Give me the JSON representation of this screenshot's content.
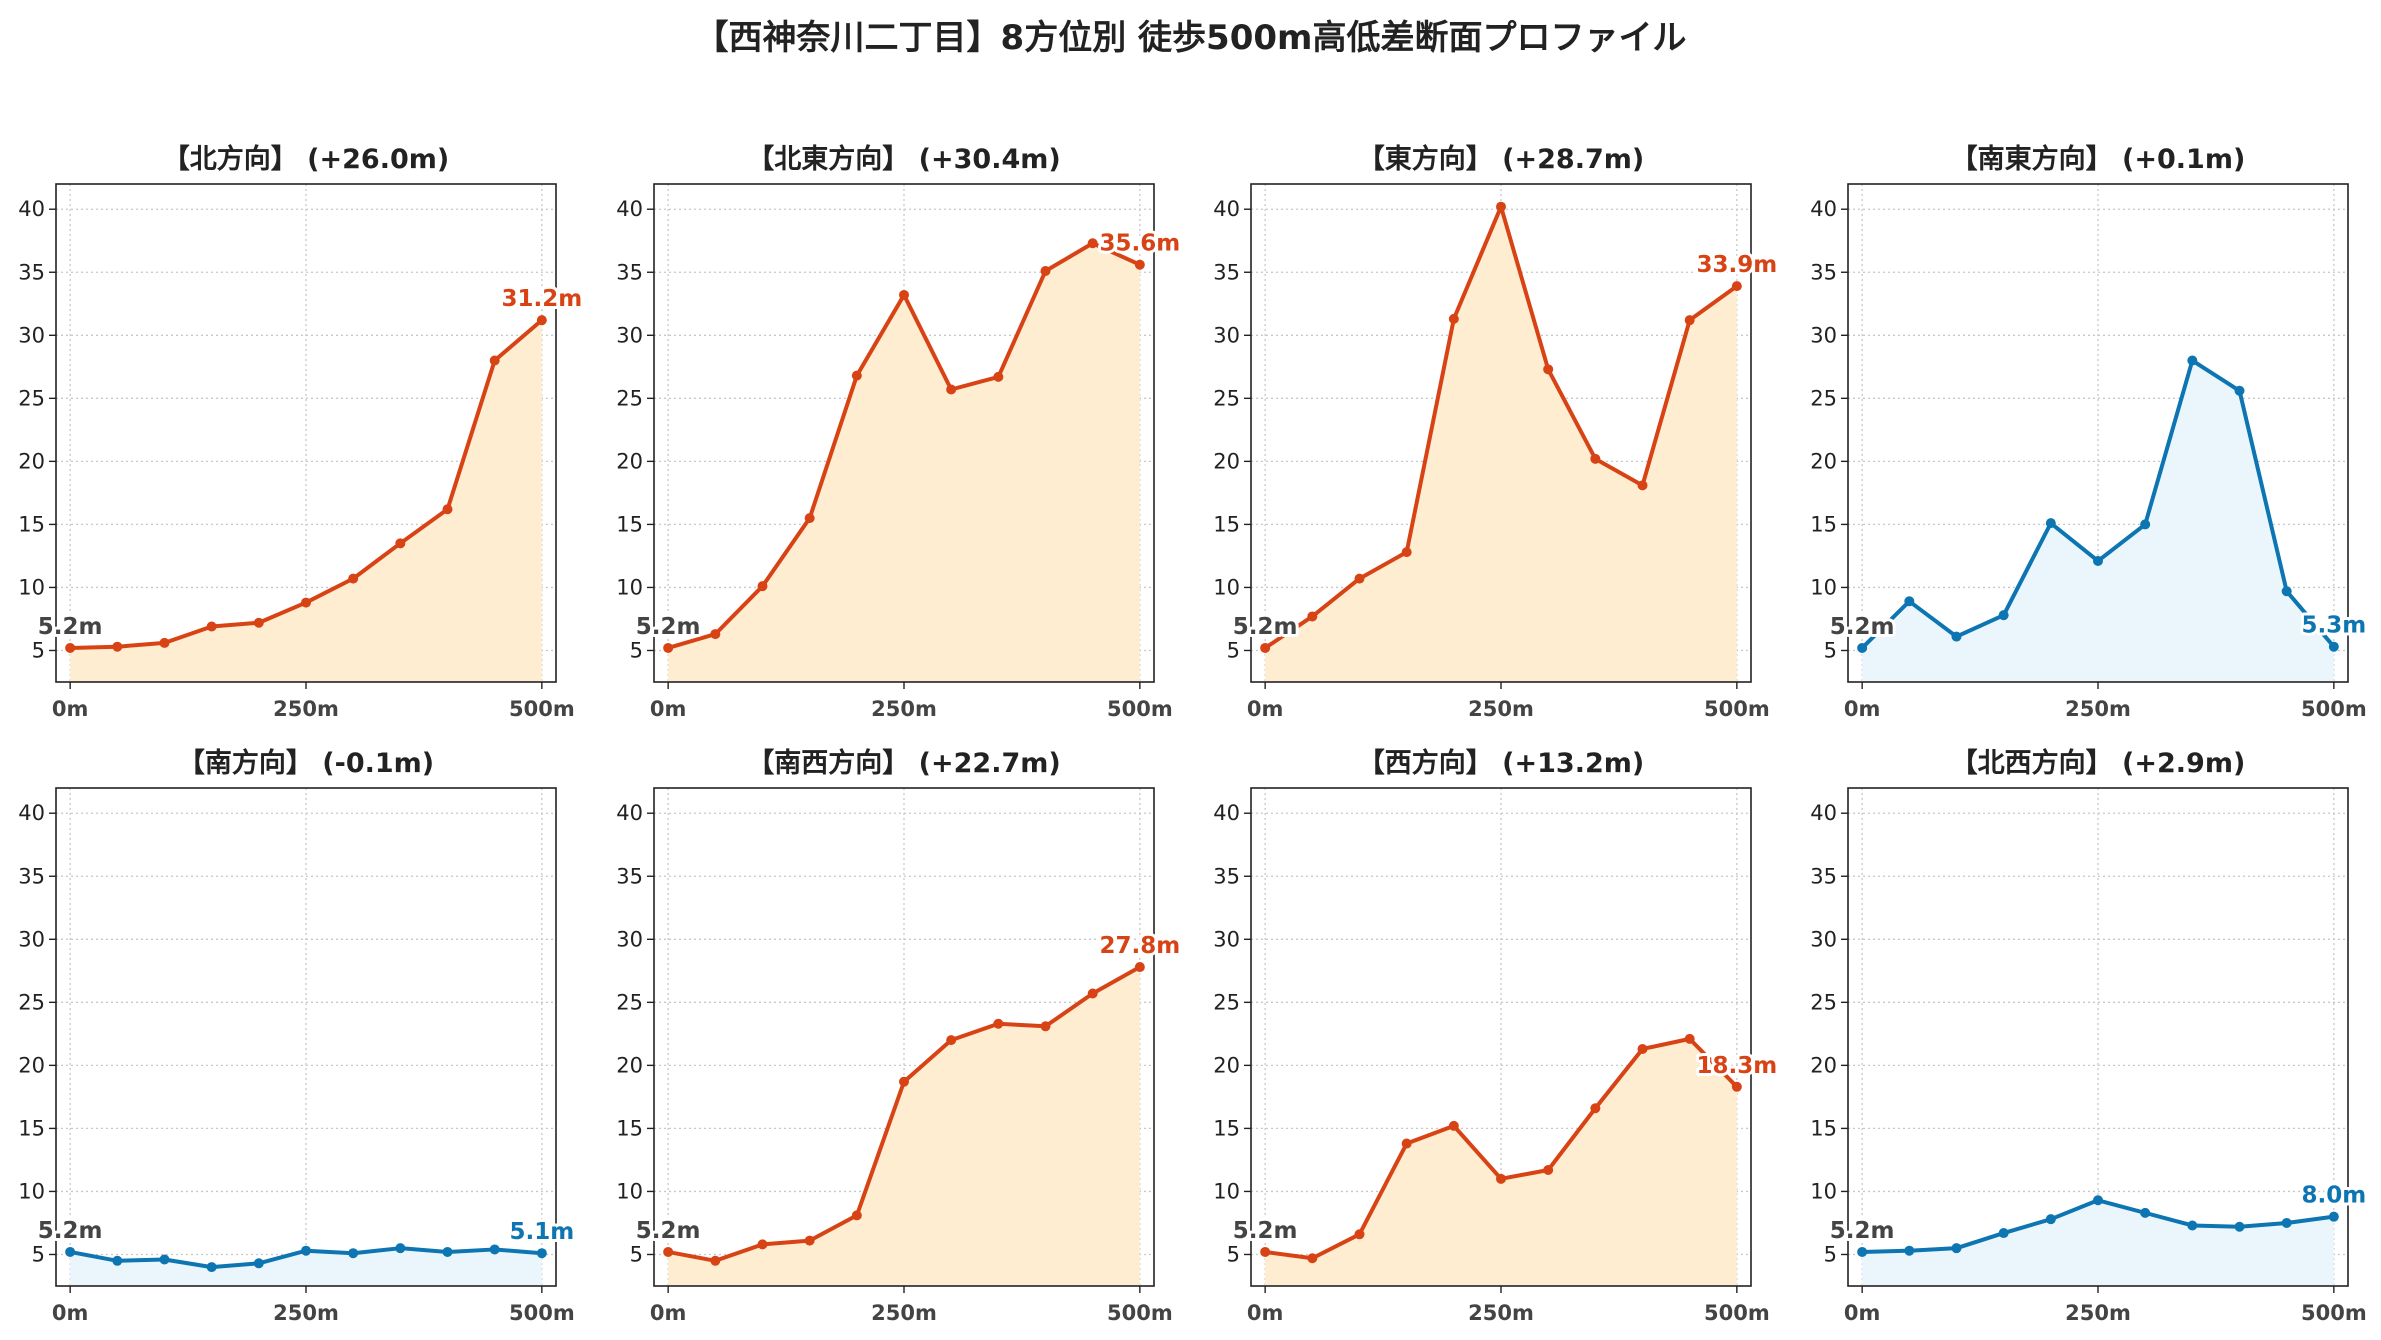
{
  "title": "【西神奈川二丁目】8方位別 徒歩500m高低差断面プロファイル",
  "colors": {
    "up_line": "#d84315",
    "up_fill": "#ffedd2",
    "flat_line": "#0d75b2",
    "flat_fill": "#eaf6fb",
    "start_label": "#444444",
    "grid": "#c8c8c8",
    "axis": "#222222"
  },
  "chart_data": [
    {
      "type": "line",
      "title": "【北方向】 (+26.0m)",
      "style": "up",
      "x": [
        0,
        50,
        100,
        150,
        200,
        250,
        300,
        350,
        400,
        450,
        500
      ],
      "y": [
        5.2,
        5.3,
        5.6,
        6.9,
        7.2,
        8.8,
        10.7,
        13.5,
        16.2,
        28.0,
        31.2
      ],
      "start_label": "5.2m",
      "end_label": "31.2m",
      "xticks": [
        "0m",
        "250m",
        "500m"
      ],
      "yticks": [
        5,
        10,
        15,
        20,
        25,
        30,
        35,
        40
      ],
      "xlim": [
        -15,
        515
      ],
      "ylim": [
        2.5,
        42
      ],
      "grid": true
    },
    {
      "type": "line",
      "title": "【北東方向】 (+30.4m)",
      "style": "up",
      "x": [
        0,
        50,
        100,
        150,
        200,
        250,
        300,
        350,
        400,
        450,
        500
      ],
      "y": [
        5.2,
        6.3,
        10.1,
        15.5,
        26.8,
        33.2,
        25.7,
        26.7,
        35.1,
        37.3,
        35.6
      ],
      "start_label": "5.2m",
      "end_label": "35.6m",
      "xticks": [
        "0m",
        "250m",
        "500m"
      ],
      "yticks": [
        5,
        10,
        15,
        20,
        25,
        30,
        35,
        40
      ],
      "xlim": [
        -15,
        515
      ],
      "ylim": [
        2.5,
        42
      ],
      "grid": true
    },
    {
      "type": "line",
      "title": "【東方向】 (+28.7m)",
      "style": "up",
      "x": [
        0,
        50,
        100,
        150,
        200,
        250,
        300,
        350,
        400,
        450,
        500
      ],
      "y": [
        5.2,
        7.7,
        10.7,
        12.8,
        31.3,
        40.2,
        27.3,
        20.2,
        18.1,
        31.2,
        33.9
      ],
      "start_label": "5.2m",
      "end_label": "33.9m",
      "xticks": [
        "0m",
        "250m",
        "500m"
      ],
      "yticks": [
        5,
        10,
        15,
        20,
        25,
        30,
        35,
        40
      ],
      "xlim": [
        -15,
        515
      ],
      "ylim": [
        2.5,
        42
      ],
      "grid": true
    },
    {
      "type": "line",
      "title": "【南東方向】 (+0.1m)",
      "style": "flat",
      "x": [
        0,
        50,
        100,
        150,
        200,
        250,
        300,
        350,
        400,
        450,
        500
      ],
      "y": [
        5.2,
        8.9,
        6.1,
        7.8,
        15.1,
        12.1,
        15.0,
        28.0,
        25.6,
        9.7,
        5.3
      ],
      "start_label": "5.2m",
      "end_label": "5.3m",
      "xticks": [
        "0m",
        "250m",
        "500m"
      ],
      "yticks": [
        5,
        10,
        15,
        20,
        25,
        30,
        35,
        40
      ],
      "xlim": [
        -15,
        515
      ],
      "ylim": [
        2.5,
        42
      ],
      "grid": true
    },
    {
      "type": "line",
      "title": "【南方向】 (-0.1m)",
      "style": "flat",
      "x": [
        0,
        50,
        100,
        150,
        200,
        250,
        300,
        350,
        400,
        450,
        500
      ],
      "y": [
        5.2,
        4.5,
        4.6,
        4.0,
        4.3,
        5.3,
        5.1,
        5.5,
        5.2,
        5.4,
        5.1
      ],
      "start_label": "5.2m",
      "end_label": "5.1m",
      "xticks": [
        "0m",
        "250m",
        "500m"
      ],
      "yticks": [
        5,
        10,
        15,
        20,
        25,
        30,
        35,
        40
      ],
      "xlim": [
        -15,
        515
      ],
      "ylim": [
        2.5,
        42
      ],
      "grid": true
    },
    {
      "type": "line",
      "title": "【南西方向】 (+22.7m)",
      "style": "up",
      "x": [
        0,
        50,
        100,
        150,
        200,
        250,
        300,
        350,
        400,
        450,
        500
      ],
      "y": [
        5.2,
        4.5,
        5.8,
        6.1,
        8.1,
        18.7,
        22.0,
        23.3,
        23.1,
        25.7,
        27.8
      ],
      "start_label": "5.2m",
      "end_label": "27.8m",
      "xticks": [
        "0m",
        "250m",
        "500m"
      ],
      "yticks": [
        5,
        10,
        15,
        20,
        25,
        30,
        35,
        40
      ],
      "xlim": [
        -15,
        515
      ],
      "ylim": [
        2.5,
        42
      ],
      "grid": true
    },
    {
      "type": "line",
      "title": "【西方向】 (+13.2m)",
      "style": "up",
      "x": [
        0,
        50,
        100,
        150,
        200,
        250,
        300,
        350,
        400,
        450,
        500
      ],
      "y": [
        5.2,
        4.7,
        6.6,
        13.8,
        15.2,
        11.0,
        11.7,
        16.6,
        21.3,
        22.1,
        18.3
      ],
      "start_label": "5.2m",
      "end_label": "18.3m",
      "xticks": [
        "0m",
        "250m",
        "500m"
      ],
      "yticks": [
        5,
        10,
        15,
        20,
        25,
        30,
        35,
        40
      ],
      "xlim": [
        -15,
        515
      ],
      "ylim": [
        2.5,
        42
      ],
      "grid": true
    },
    {
      "type": "line",
      "title": "【北西方向】 (+2.9m)",
      "style": "flat",
      "x": [
        0,
        50,
        100,
        150,
        200,
        250,
        300,
        350,
        400,
        450,
        500
      ],
      "y": [
        5.2,
        5.3,
        5.5,
        6.7,
        7.8,
        9.3,
        8.3,
        7.3,
        7.2,
        7.5,
        8.0
      ],
      "start_label": "5.2m",
      "end_label": "8.0m",
      "xticks": [
        "0m",
        "250m",
        "500m"
      ],
      "yticks": [
        5,
        10,
        15,
        20,
        25,
        30,
        35,
        40
      ],
      "xlim": [
        -15,
        515
      ],
      "ylim": [
        2.5,
        42
      ],
      "grid": true
    }
  ]
}
